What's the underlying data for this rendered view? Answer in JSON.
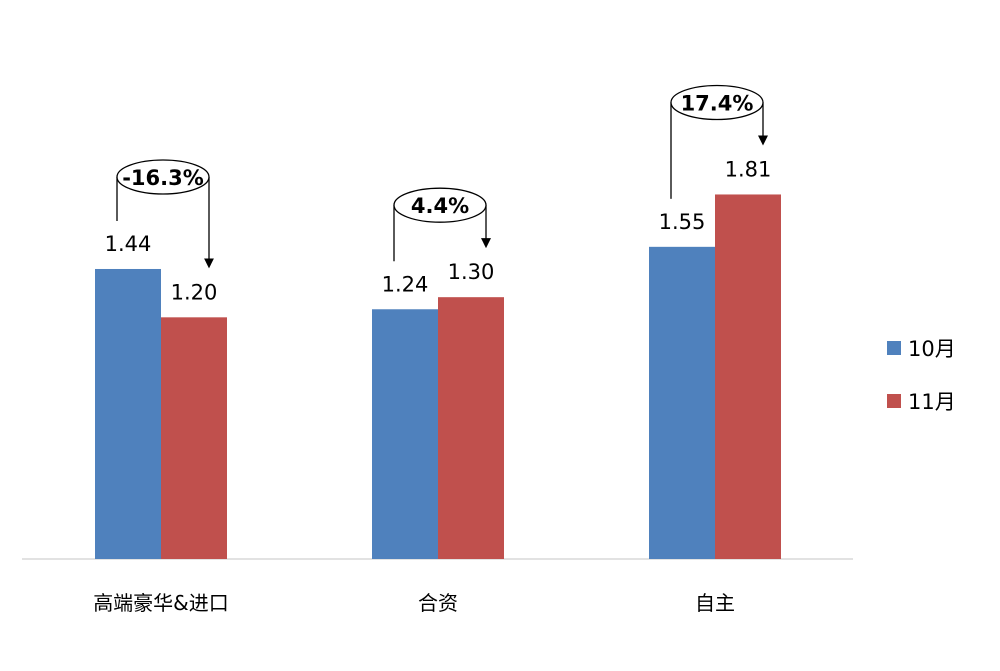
{
  "chart_data": {
    "type": "bar",
    "title": "",
    "xlabel": "",
    "ylabel": "",
    "ylim": [
      0,
      2.2
    ],
    "grid": false,
    "legend_position": "right",
    "categories": [
      "高端豪华&进口",
      "合资",
      "自主"
    ],
    "series": [
      {
        "name": "10月",
        "color": "#4F81BD",
        "values": [
          1.44,
          1.24,
          1.55
        ],
        "labels": [
          "1.44",
          "1.24",
          "1.55"
        ]
      },
      {
        "name": "11月",
        "color": "#C0504D",
        "values": [
          1.2,
          1.3,
          1.81
        ],
        "labels": [
          "1.20",
          "1.30",
          "1.81"
        ]
      }
    ],
    "annotations": [
      {
        "category": "高端豪华&进口",
        "text": "-16.3%"
      },
      {
        "category": "合资",
        "text": "4.4%"
      },
      {
        "category": "自主",
        "text": "17.4%"
      }
    ]
  }
}
